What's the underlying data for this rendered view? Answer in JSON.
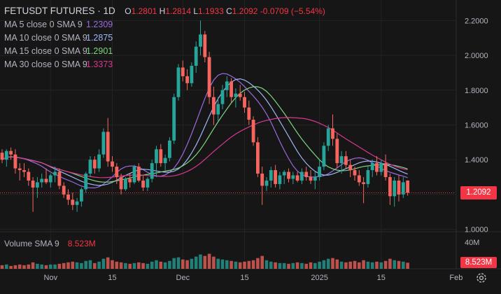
{
  "header": {
    "symbol": "FETUSDT FUTURES · 1D",
    "ohlc": [
      {
        "k": "O",
        "v": "1.2801"
      },
      {
        "k": "H",
        "v": "1.2814"
      },
      {
        "k": "L",
        "v": "1.1933"
      },
      {
        "k": "C",
        "v": "1.2092"
      },
      {
        "k": "",
        "v": "-0.0709 (−5.54%)"
      }
    ]
  },
  "indicators": [
    {
      "label": "MA 5 close 0 SMA 9",
      "value": "1.2309",
      "color": "#9c6ade"
    },
    {
      "label": "MA 10 close 0 SMA 9",
      "value": "1.2875",
      "color": "#9fb7f5"
    },
    {
      "label": "MA 15 close 0 SMA 9",
      "value": "1.2901",
      "color": "#7dd67f"
    },
    {
      "label": "MA 30 close 0 SMA 9",
      "value": "1.3373",
      "color": "#d9378e"
    }
  ],
  "volume_legend": {
    "label": "Volume SMA 9",
    "value": "8.523M"
  },
  "price_badge": "1.2092",
  "volume_badge": "8.523M",
  "volume_axis_label": "40M",
  "colors": {
    "up": "#26a69a",
    "down": "#f7665e",
    "background": "#161616",
    "grid": "#232323"
  },
  "chart_data": {
    "type": "candlestick",
    "yticks": [
      "2.2000",
      "2.0000",
      "1.8000",
      "1.6000",
      "1.4000",
      "1.2000",
      "1.0000"
    ],
    "ytick_values": [
      2.2,
      2.0,
      1.8,
      1.6,
      1.4,
      1.2,
      1.0
    ],
    "ylim": [
      0.99,
      2.27
    ],
    "xticks": [
      {
        "label": "Nov",
        "index": 11
      },
      {
        "label": "15",
        "index": 25
      },
      {
        "label": "Dec",
        "index": 41
      },
      {
        "label": "15",
        "index": 55
      },
      {
        "label": "2025",
        "index": 72
      },
      {
        "label": "15",
        "index": 86
      },
      {
        "label": "Feb",
        "index": 103
      }
    ],
    "last_close": 1.2092,
    "candles": [
      [
        1.44,
        1.46,
        1.38,
        1.4
      ],
      [
        1.4,
        1.46,
        1.36,
        1.45
      ],
      [
        1.45,
        1.47,
        1.4,
        1.43
      ],
      [
        1.43,
        1.46,
        1.32,
        1.35
      ],
      [
        1.35,
        1.38,
        1.28,
        1.34
      ],
      [
        1.34,
        1.38,
        1.3,
        1.33
      ],
      [
        1.33,
        1.35,
        1.25,
        1.28
      ],
      [
        1.28,
        1.3,
        1.1,
        1.24
      ],
      [
        1.24,
        1.3,
        1.18,
        1.27
      ],
      [
        1.27,
        1.32,
        1.24,
        1.29
      ],
      [
        1.29,
        1.35,
        1.26,
        1.27
      ],
      [
        1.27,
        1.32,
        1.24,
        1.31
      ],
      [
        1.31,
        1.36,
        1.27,
        1.33
      ],
      [
        1.33,
        1.35,
        1.23,
        1.25
      ],
      [
        1.25,
        1.27,
        1.18,
        1.2
      ],
      [
        1.2,
        1.23,
        1.14,
        1.17
      ],
      [
        1.17,
        1.21,
        1.11,
        1.14
      ],
      [
        1.14,
        1.18,
        1.1,
        1.16
      ],
      [
        1.16,
        1.24,
        1.13,
        1.23
      ],
      [
        1.23,
        1.33,
        1.21,
        1.32
      ],
      [
        1.32,
        1.42,
        1.3,
        1.4
      ],
      [
        1.4,
        1.42,
        1.32,
        1.35
      ],
      [
        1.35,
        1.46,
        1.33,
        1.43
      ],
      [
        1.43,
        1.58,
        1.41,
        1.56
      ],
      [
        1.56,
        1.64,
        1.36,
        1.39
      ],
      [
        1.39,
        1.42,
        1.33,
        1.36
      ],
      [
        1.36,
        1.38,
        1.26,
        1.3
      ],
      [
        1.3,
        1.32,
        1.2,
        1.23
      ],
      [
        1.23,
        1.3,
        1.22,
        1.29
      ],
      [
        1.29,
        1.32,
        1.24,
        1.27
      ],
      [
        1.27,
        1.37,
        1.26,
        1.36
      ],
      [
        1.36,
        1.38,
        1.27,
        1.28
      ],
      [
        1.28,
        1.31,
        1.22,
        1.24
      ],
      [
        1.24,
        1.3,
        1.22,
        1.29
      ],
      [
        1.29,
        1.4,
        1.27,
        1.38
      ],
      [
        1.38,
        1.48,
        1.3,
        1.46
      ],
      [
        1.46,
        1.49,
        1.36,
        1.38
      ],
      [
        1.38,
        1.43,
        1.34,
        1.41
      ],
      [
        1.41,
        1.53,
        1.39,
        1.51
      ],
      [
        1.51,
        1.78,
        1.49,
        1.76
      ],
      [
        1.76,
        1.95,
        1.74,
        1.93
      ],
      [
        1.93,
        1.97,
        1.85,
        1.88
      ],
      [
        1.88,
        1.92,
        1.8,
        1.84
      ],
      [
        1.84,
        1.96,
        1.82,
        1.94
      ],
      [
        1.94,
        2.08,
        1.9,
        2.05
      ],
      [
        2.05,
        2.2,
        2.0,
        2.12
      ],
      [
        2.12,
        2.14,
        1.96,
        1.99
      ],
      [
        1.99,
        2.02,
        1.72,
        1.76
      ],
      [
        1.76,
        1.82,
        1.6,
        1.66
      ],
      [
        1.66,
        1.76,
        1.62,
        1.72
      ],
      [
        1.72,
        1.83,
        1.69,
        1.8
      ],
      [
        1.8,
        1.88,
        1.76,
        1.85
      ],
      [
        1.85,
        1.87,
        1.73,
        1.76
      ],
      [
        1.76,
        1.81,
        1.7,
        1.78
      ],
      [
        1.78,
        1.83,
        1.74,
        1.76
      ],
      [
        1.76,
        1.79,
        1.67,
        1.7
      ],
      [
        1.7,
        1.74,
        1.6,
        1.63
      ],
      [
        1.63,
        1.65,
        1.48,
        1.5
      ],
      [
        1.5,
        1.53,
        1.3,
        1.32
      ],
      [
        1.32,
        1.36,
        1.14,
        1.25
      ],
      [
        1.25,
        1.3,
        1.22,
        1.28
      ],
      [
        1.28,
        1.36,
        1.24,
        1.34
      ],
      [
        1.34,
        1.37,
        1.24,
        1.26
      ],
      [
        1.26,
        1.33,
        1.23,
        1.31
      ],
      [
        1.31,
        1.34,
        1.26,
        1.33
      ],
      [
        1.33,
        1.35,
        1.27,
        1.29
      ],
      [
        1.29,
        1.33,
        1.26,
        1.31
      ],
      [
        1.31,
        1.33,
        1.27,
        1.28
      ],
      [
        1.28,
        1.35,
        1.26,
        1.33
      ],
      [
        1.33,
        1.36,
        1.28,
        1.3
      ],
      [
        1.3,
        1.34,
        1.26,
        1.28
      ],
      [
        1.28,
        1.33,
        1.23,
        1.3
      ],
      [
        1.3,
        1.4,
        1.28,
        1.36
      ],
      [
        1.36,
        1.5,
        1.34,
        1.48
      ],
      [
        1.48,
        1.6,
        1.45,
        1.58
      ],
      [
        1.58,
        1.66,
        1.48,
        1.52
      ],
      [
        1.52,
        1.55,
        1.35,
        1.38
      ],
      [
        1.38,
        1.45,
        1.32,
        1.42
      ],
      [
        1.42,
        1.45,
        1.35,
        1.37
      ],
      [
        1.37,
        1.4,
        1.3,
        1.34
      ],
      [
        1.34,
        1.36,
        1.28,
        1.31
      ],
      [
        1.31,
        1.34,
        1.25,
        1.27
      ],
      [
        1.27,
        1.3,
        1.15,
        1.26
      ],
      [
        1.26,
        1.36,
        1.24,
        1.34
      ],
      [
        1.34,
        1.4,
        1.3,
        1.38
      ],
      [
        1.38,
        1.42,
        1.31,
        1.33
      ],
      [
        1.33,
        1.4,
        1.31,
        1.38
      ],
      [
        1.38,
        1.43,
        1.28,
        1.3
      ],
      [
        1.3,
        1.32,
        1.14,
        1.19
      ],
      [
        1.19,
        1.3,
        1.13,
        1.28
      ],
      [
        1.28,
        1.31,
        1.16,
        1.2
      ],
      [
        1.2,
        1.3,
        1.18,
        1.27
      ],
      [
        1.2801,
        1.2814,
        1.1933,
        1.2092
      ]
    ],
    "volume": [
      5,
      6,
      4,
      5,
      6,
      5,
      6,
      9,
      7,
      6,
      5,
      6,
      6,
      7,
      8,
      9,
      10,
      9,
      8,
      11,
      12,
      8,
      10,
      14,
      16,
      12,
      10,
      9,
      8,
      7,
      8,
      9,
      8,
      7,
      10,
      12,
      10,
      9,
      11,
      15,
      16,
      13,
      12,
      14,
      17,
      20,
      18,
      21,
      17,
      14,
      13,
      12,
      11,
      10,
      9,
      10,
      11,
      12,
      15,
      18,
      12,
      10,
      9,
      8,
      8,
      7,
      8,
      9,
      8,
      7,
      9,
      8,
      10,
      12,
      14,
      15,
      13,
      10,
      9,
      10,
      11,
      9,
      12,
      10,
      9,
      10,
      9,
      11,
      14,
      12,
      11,
      10,
      8.5
    ],
    "volume_ymax": 45
  }
}
